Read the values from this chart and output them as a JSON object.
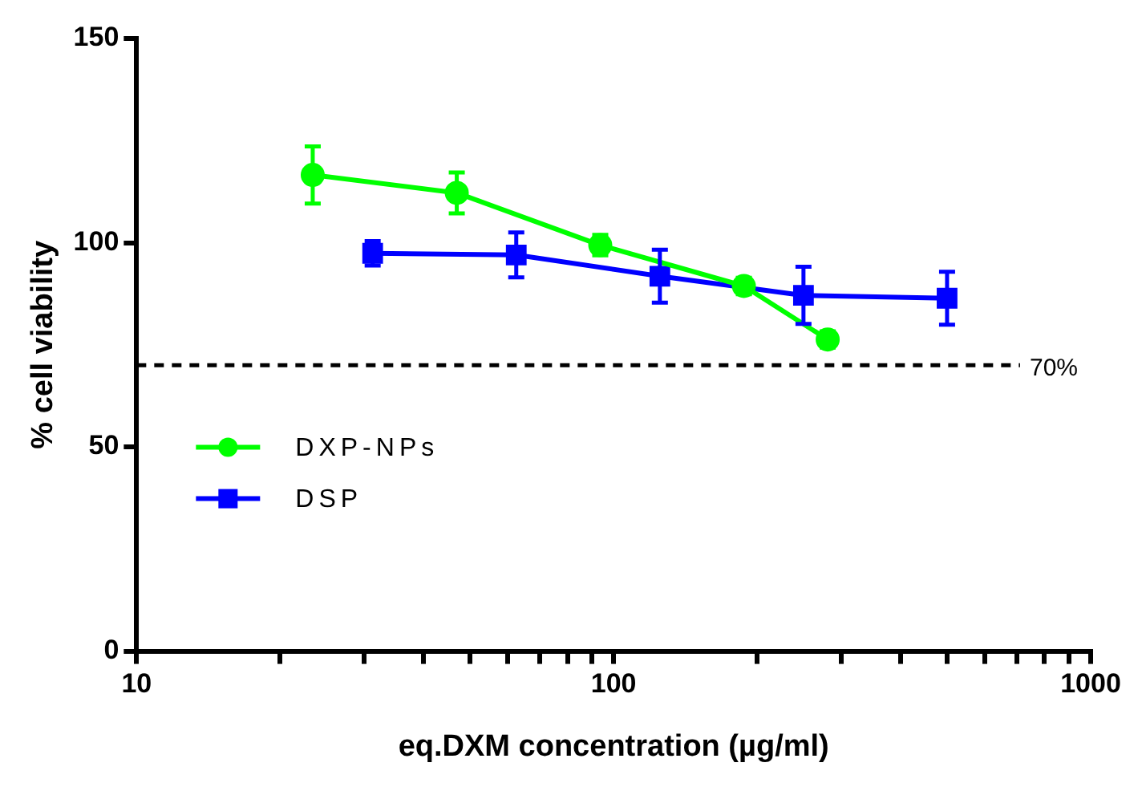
{
  "chart_data": {
    "type": "line",
    "xlabel": "eq.DXM concentration (µg/ml)",
    "ylabel": "% cell viability",
    "log": "x",
    "grid": false,
    "legend": "bottom left",
    "xlim": [
      10,
      1000
    ],
    "xticks": [
      10,
      {
        "value": 20,
        "label": null
      },
      {
        "value": 30,
        "label": null
      },
      {
        "value": 40,
        "label": null
      },
      {
        "value": 50,
        "label": null
      },
      {
        "value": 60,
        "label": null
      },
      {
        "value": 70,
        "label": null
      },
      {
        "value": 80,
        "label": null
      },
      {
        "value": 90,
        "label": null
      },
      100,
      {
        "value": 200,
        "label": null
      },
      {
        "value": 300,
        "label": null
      },
      {
        "value": 400,
        "label": null
      },
      {
        "value": 500,
        "label": null
      },
      {
        "value": 600,
        "label": null
      },
      {
        "value": 700,
        "label": null
      },
      {
        "value": 800,
        "label": null
      },
      {
        "value": 900,
        "label": null
      },
      1000
    ],
    "ylim": [
      0,
      150
    ],
    "yticks": [
      0,
      50,
      100,
      150
    ],
    "series": [
      {
        "name": "DXP-NPs",
        "color": "#00ff00",
        "marker": "circle",
        "x": [
          23.4,
          46.9,
          93.75,
          187.5,
          281
        ],
        "values": [
          116.6,
          112.2,
          99.4,
          89.4,
          76.3
        ],
        "errors": [
          7,
          5,
          2.5,
          2,
          2
        ]
      },
      {
        "name": "DSP",
        "color": "#0000ff",
        "marker": "square",
        "x": [
          31.25,
          62.5,
          125,
          250,
          500
        ],
        "values": [
          97.4,
          97,
          91.8,
          87.1,
          86.4
        ],
        "errors": [
          3,
          5.5,
          6.5,
          7,
          6.5
        ]
      }
    ],
    "ref_lines": [
      {
        "axis": "y",
        "value": 70,
        "label": "70%",
        "color": "#000000",
        "line_style": "dashed"
      }
    ]
  }
}
